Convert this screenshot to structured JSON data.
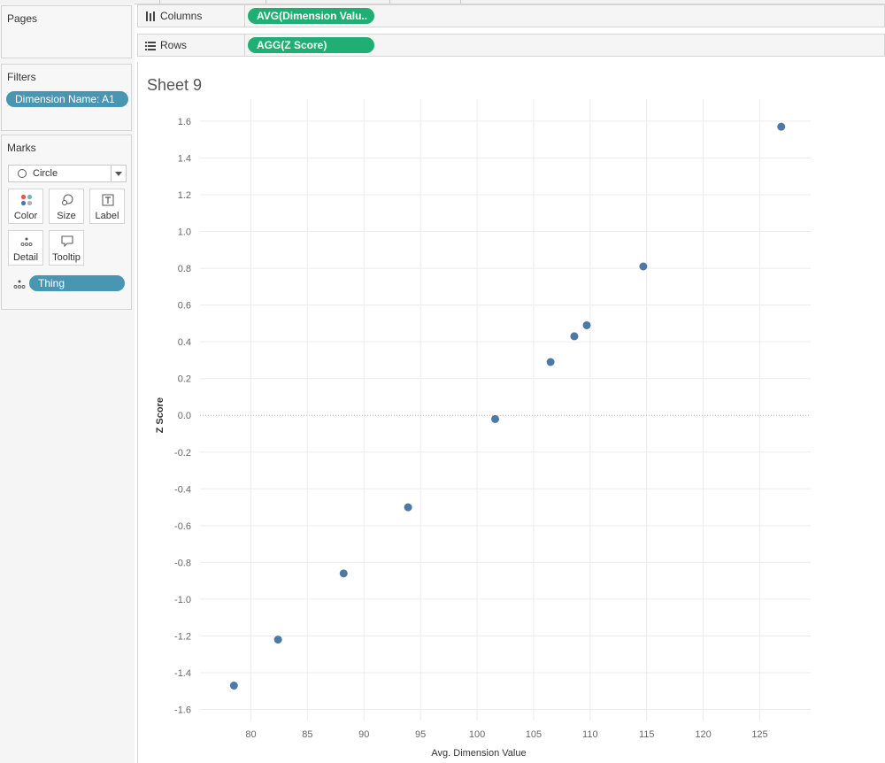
{
  "panels": {
    "pages": {
      "title": "Pages"
    },
    "filters": {
      "title": "Filters",
      "pill": "Dimension Name: A1"
    },
    "marks": {
      "title": "Marks",
      "mark_type": "Circle",
      "buttons": {
        "color": "Color",
        "size": "Size",
        "label": "Label",
        "detail": "Detail",
        "tooltip": "Tooltip"
      },
      "detail_pill": "Thing"
    }
  },
  "shelves": {
    "columns": {
      "label": "Columns",
      "pill": "AVG(Dimension Valu.."
    },
    "rows": {
      "label": "Rows",
      "pill": "AGG(Z Score)"
    }
  },
  "sheet": {
    "title": "Sheet 9"
  },
  "colors": {
    "mark": "#4e79a7",
    "pill_blue": "#4996b2",
    "pill_green": "#1fae73"
  },
  "chart_data": {
    "type": "scatter",
    "xlabel": "Avg. Dimension Value",
    "ylabel": "Z Score",
    "xlim": [
      75.5,
      129.5
    ],
    "ylim": [
      -1.66,
      1.72
    ],
    "xticks": [
      80,
      85,
      90,
      95,
      100,
      105,
      110,
      115,
      120,
      125
    ],
    "yticks": [
      -1.6,
      -1.4,
      -1.2,
      -1.0,
      -0.8,
      -0.6,
      -0.4,
      -0.2,
      0.0,
      0.2,
      0.4,
      0.6,
      0.8,
      1.0,
      1.2,
      1.4,
      1.6
    ],
    "ytick_labels": [
      "-1.6",
      "-1.4",
      "-1.2",
      "-1.0",
      "-0.8",
      "-0.6",
      "-0.4",
      "-0.2",
      "0.0",
      "0.2",
      "0.4",
      "0.6",
      "0.8",
      "1.0",
      "1.2",
      "1.4",
      "1.6"
    ],
    "grid": true,
    "zero_line": true,
    "points": [
      {
        "x": 78.5,
        "y": -1.47
      },
      {
        "x": 82.4,
        "y": -1.22
      },
      {
        "x": 88.2,
        "y": -0.86
      },
      {
        "x": 93.9,
        "y": -0.5
      },
      {
        "x": 101.6,
        "y": -0.02
      },
      {
        "x": 106.5,
        "y": 0.29
      },
      {
        "x": 108.6,
        "y": 0.43
      },
      {
        "x": 109.7,
        "y": 0.49
      },
      {
        "x": 114.7,
        "y": 0.81
      },
      {
        "x": 126.9,
        "y": 1.57
      }
    ]
  }
}
